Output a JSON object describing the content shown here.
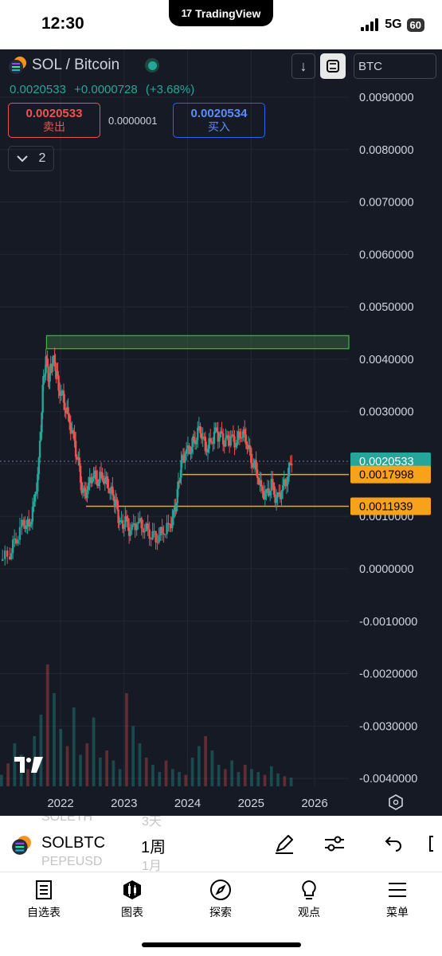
{
  "status_bar": {
    "time": "12:30",
    "app_pill": "TradingView",
    "network": "5G",
    "battery": "60"
  },
  "header": {
    "symbol": "SOL / Bitcoin",
    "last_price": "0.0020533",
    "change_abs": "+0.0000728",
    "change_pct": "(+3.68%)",
    "sell_price": "0.0020533",
    "sell_label": "卖出",
    "spread": "0.0000001",
    "buy_price": "0.0020534",
    "buy_label": "买入",
    "indicator_count": "2",
    "currency": "BTC"
  },
  "colors": {
    "background": "#161a25",
    "up": "#26a69a",
    "down": "#ef5350",
    "level_line": "#f7a21b",
    "zone": "#4caf50"
  },
  "chart_data": {
    "type": "candlestick",
    "title": "SOL / Bitcoin",
    "x_ticks": [
      "2022",
      "2023",
      "2024",
      "2025",
      "2026"
    ],
    "y_ticks": [
      "0.0090000",
      "0.0080000",
      "0.0070000",
      "0.0060000",
      "0.0050000",
      "0.0040000",
      "0.0030000",
      "0.0020533",
      "0.0017998",
      "0.0011939",
      "0.0010000",
      "0.0000000",
      "-0.0010000",
      "-0.0020000",
      "-0.0030000",
      "-0.0040000"
    ],
    "ylim": [
      -0.0042,
      0.0095
    ],
    "price_tags": [
      {
        "label": "0.0020533",
        "value": 0.0020533,
        "color": "#26a69a"
      },
      {
        "label": "0.0017998",
        "value": 0.0017998,
        "color": "#f7a21b"
      },
      {
        "label": "0.0011939",
        "value": 0.0011939,
        "color": "#f7a21b"
      }
    ],
    "horizontal_levels": [
      {
        "value": 0.0017998,
        "from": 2023.92,
        "to": 2026.45
      },
      {
        "value": 0.0011939,
        "from": 2022.4,
        "to": 2026.45
      }
    ],
    "zone": {
      "from": 2021.78,
      "to": 2026.45,
      "low": 0.0042,
      "high": 0.00445
    },
    "price_path": [
      [
        2021.05,
        0.00015
      ],
      [
        2021.2,
        0.0003
      ],
      [
        2021.3,
        0.0006
      ],
      [
        2021.42,
        0.0009
      ],
      [
        2021.5,
        0.0008
      ],
      [
        2021.58,
        0.0012
      ],
      [
        2021.66,
        0.002
      ],
      [
        2021.72,
        0.0034
      ],
      [
        2021.77,
        0.004
      ],
      [
        2021.82,
        0.0036
      ],
      [
        2021.87,
        0.004
      ],
      [
        2021.92,
        0.0039
      ],
      [
        2021.97,
        0.0035
      ],
      [
        2022.05,
        0.0032
      ],
      [
        2022.12,
        0.0029
      ],
      [
        2022.2,
        0.0025
      ],
      [
        2022.28,
        0.002
      ],
      [
        2022.35,
        0.0014
      ],
      [
        2022.42,
        0.0015
      ],
      [
        2022.5,
        0.0018
      ],
      [
        2022.58,
        0.0017
      ],
      [
        2022.66,
        0.0018
      ],
      [
        2022.74,
        0.0016
      ],
      [
        2022.82,
        0.0014
      ],
      [
        2022.88,
        0.0012
      ],
      [
        2022.94,
        0.0008
      ],
      [
        2023.02,
        0.0009
      ],
      [
        2023.1,
        0.0007
      ],
      [
        2023.2,
        0.0009
      ],
      [
        2023.3,
        0.0008
      ],
      [
        2023.4,
        0.0007
      ],
      [
        2023.5,
        0.0006
      ],
      [
        2023.6,
        0.0007
      ],
      [
        2023.7,
        0.0008
      ],
      [
        2023.78,
        0.001
      ],
      [
        2023.84,
        0.0014
      ],
      [
        2023.9,
        0.002
      ],
      [
        2023.96,
        0.0022
      ],
      [
        2024.05,
        0.0023
      ],
      [
        2024.12,
        0.0025
      ],
      [
        2024.2,
        0.0027
      ],
      [
        2024.28,
        0.0023
      ],
      [
        2024.36,
        0.0024
      ],
      [
        2024.44,
        0.0026
      ],
      [
        2024.52,
        0.0025
      ],
      [
        2024.6,
        0.0024
      ],
      [
        2024.68,
        0.0025
      ],
      [
        2024.76,
        0.0024
      ],
      [
        2024.84,
        0.0026
      ],
      [
        2024.92,
        0.0025
      ],
      [
        2025.0,
        0.0021
      ],
      [
        2025.08,
        0.0019
      ],
      [
        2025.16,
        0.0015
      ],
      [
        2025.24,
        0.0014
      ],
      [
        2025.32,
        0.0016
      ],
      [
        2025.4,
        0.0013
      ],
      [
        2025.48,
        0.0015
      ],
      [
        2025.56,
        0.0017
      ],
      [
        2025.64,
        0.0021
      ]
    ],
    "volume": {
      "max_value": 1,
      "bars": [
        0.08,
        0.16,
        0.3,
        0.22,
        0.12,
        0.35,
        0.5,
        0.85,
        0.65,
        0.4,
        0.28,
        0.55,
        0.22,
        0.3,
        0.48,
        0.2,
        0.25,
        0.18,
        0.12,
        0.65,
        0.42,
        0.3,
        0.2,
        0.15,
        0.1,
        0.18,
        0.12,
        0.1,
        0.08,
        0.2,
        0.28,
        0.35,
        0.25,
        0.15,
        0.12,
        0.18,
        0.1,
        0.15,
        0.12,
        0.1,
        0.08,
        0.14,
        0.09,
        0.07,
        0.06
      ]
    },
    "grid": true
  },
  "symbol_bar": {
    "ghost_symbol_above": "SOLETH",
    "ghost_interval_above": "3天",
    "symbol": "SOLBTC",
    "interval": "1周",
    "ghost_symbol_below": "PEPEUSD",
    "ghost_interval_below": "1月"
  },
  "tabs": [
    {
      "label": "自选表",
      "icon": "watchlist-icon"
    },
    {
      "label": "图表",
      "icon": "chart-icon"
    },
    {
      "label": "探索",
      "icon": "compass-icon"
    },
    {
      "label": "观点",
      "icon": "lightbulb-icon"
    },
    {
      "label": "菜单",
      "icon": "menu-icon"
    }
  ]
}
